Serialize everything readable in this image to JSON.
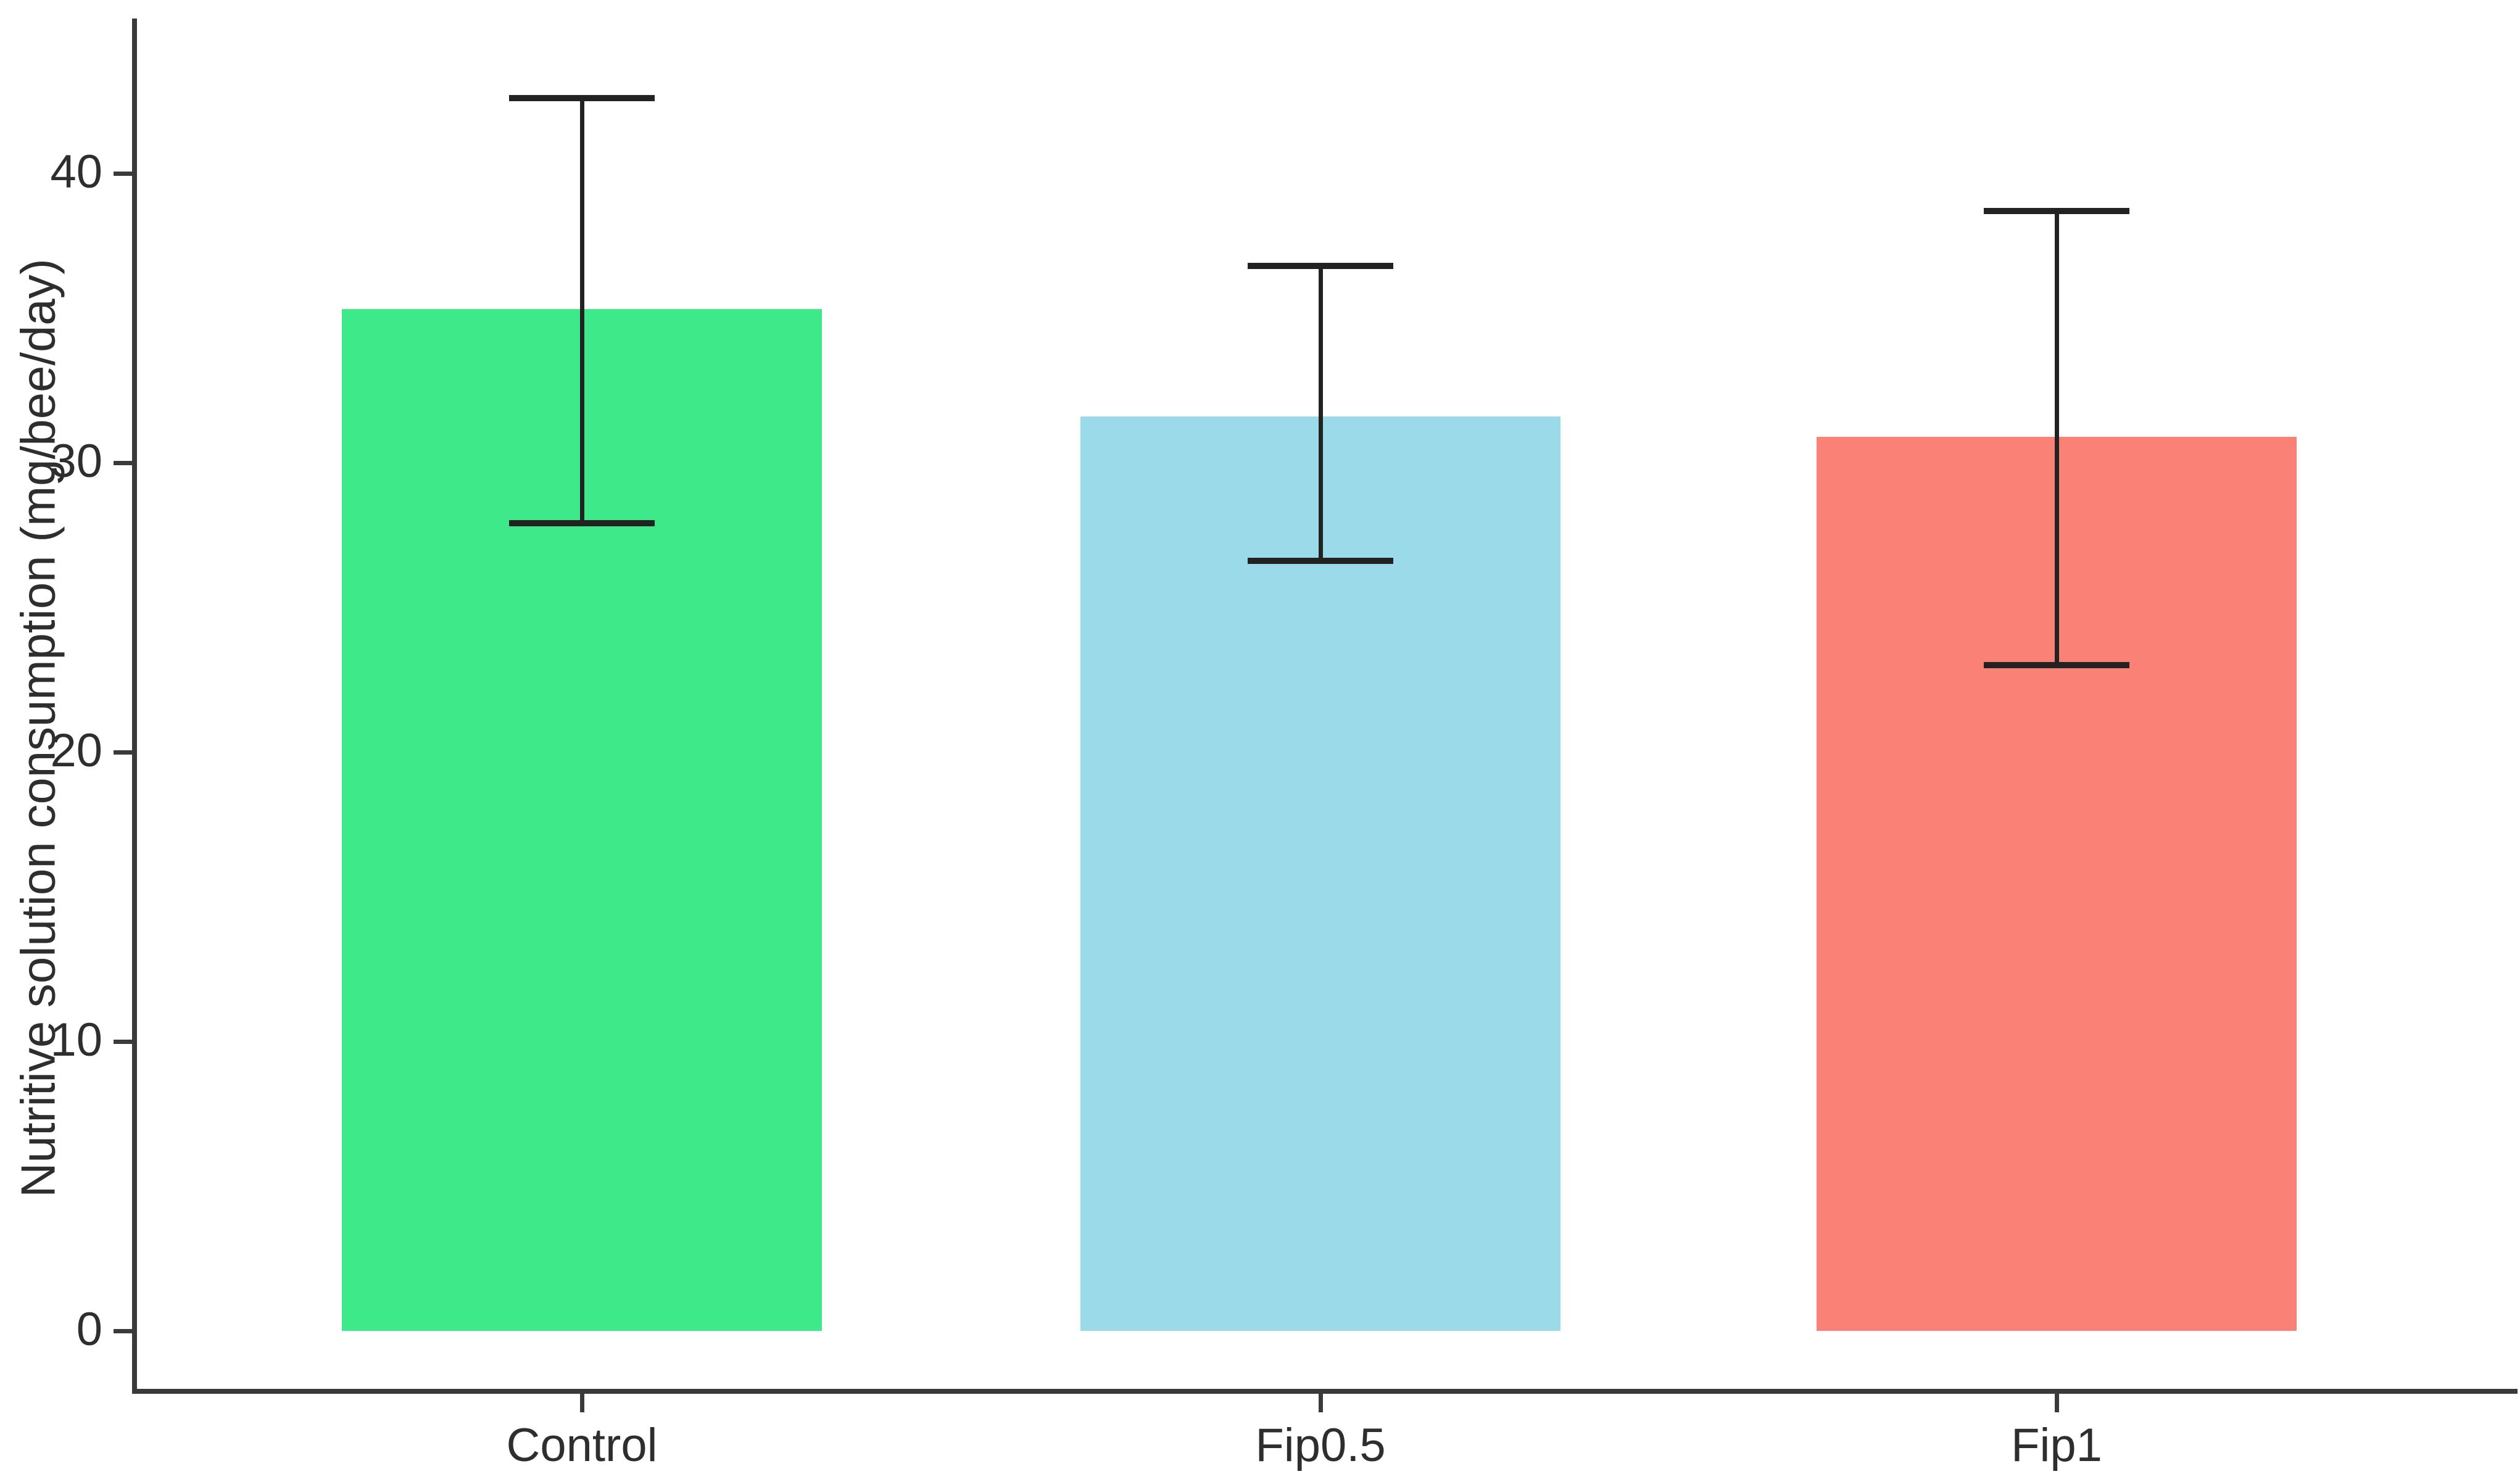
{
  "chart_data": {
    "type": "bar",
    "title": "",
    "categories": [
      "Control",
      "Fip0.5",
      "Fip1"
    ],
    "values": [
      35.3,
      31.6,
      30.9
    ],
    "error_bars": {
      "upper": [
        42.6,
        36.8,
        38.7
      ],
      "lower": [
        27.9,
        26.6,
        23.0
      ]
    },
    "bar_colors": [
      "#3ee98a",
      "#9bdae8",
      "#fa8176"
    ],
    "xlabel": "",
    "ylabel": "Nutritive solution consumption (mg/bee/day)",
    "y_ticks": [
      0,
      10,
      20,
      30,
      40
    ],
    "ylim": [
      0,
      45.4
    ],
    "grid": false,
    "legend": false,
    "axis_color": "#3a3a3a",
    "error_bar_color": "#222222"
  }
}
